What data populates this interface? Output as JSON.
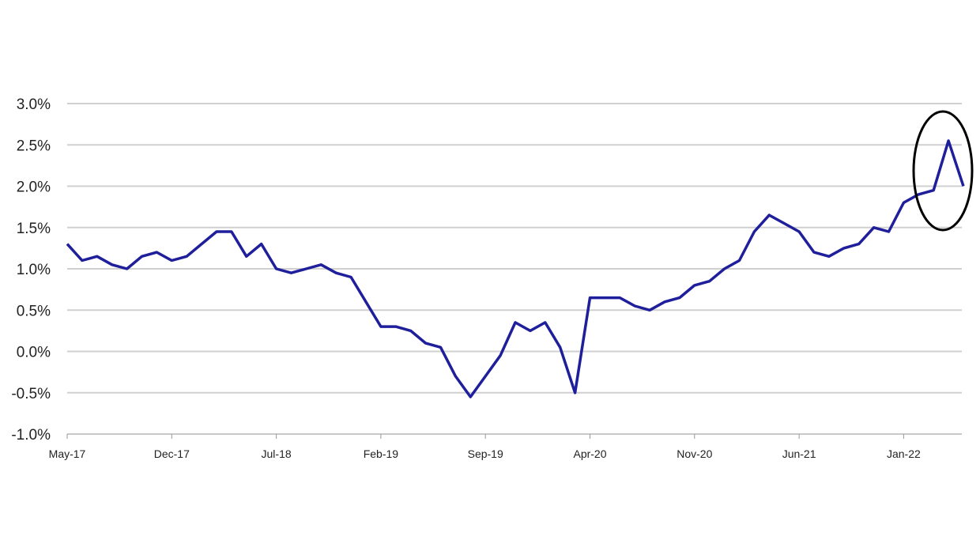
{
  "chart_data": {
    "type": "line",
    "categories": [
      "May-17",
      null,
      null,
      null,
      null,
      null,
      null,
      "Dec-17",
      null,
      null,
      null,
      null,
      null,
      null,
      "Jul-18",
      null,
      null,
      null,
      null,
      null,
      null,
      "Feb-19",
      null,
      null,
      null,
      null,
      null,
      null,
      "Sep-19",
      null,
      null,
      null,
      null,
      null,
      null,
      "Apr-20",
      null,
      null,
      null,
      null,
      null,
      null,
      "Nov-20",
      null,
      null,
      null,
      null,
      null,
      null,
      "Jun-21",
      null,
      null,
      null,
      null,
      null,
      null,
      "Jan-22",
      null,
      null,
      null,
      null
    ],
    "values": [
      1.3,
      1.1,
      1.15,
      1.05,
      1.0,
      1.15,
      1.2,
      1.1,
      1.15,
      1.3,
      1.45,
      1.45,
      1.15,
      1.3,
      1.0,
      0.95,
      1.0,
      1.05,
      0.95,
      0.9,
      0.6,
      0.3,
      0.3,
      0.25,
      0.1,
      0.05,
      -0.3,
      -0.55,
      -0.3,
      -0.05,
      0.35,
      0.25,
      0.35,
      0.05,
      -0.5,
      0.65,
      0.65,
      0.65,
      0.55,
      0.5,
      0.6,
      0.65,
      0.8,
      0.85,
      1.0,
      1.1,
      1.45,
      1.65,
      1.55,
      1.45,
      1.2,
      1.15,
      1.25,
      1.3,
      1.5,
      1.45,
      1.8,
      1.9,
      1.95,
      2.55,
      2.0
    ],
    "color": "#1f1f9c",
    "ylim": [
      -1,
      3
    ],
    "yticks": [
      {
        "value": -1,
        "label": "-1.0%"
      },
      {
        "value": -0.5,
        "label": "-0.5%"
      },
      {
        "value": 0,
        "label": "0.0%"
      },
      {
        "value": 0.5,
        "label": "0.5%"
      },
      {
        "value": 1,
        "label": "1.0%"
      },
      {
        "value": 1.5,
        "label": "1.5%"
      },
      {
        "value": 2,
        "label": "2.0%"
      },
      {
        "value": 2.5,
        "label": "2.5%"
      },
      {
        "value": 3,
        "label": "3.0%"
      }
    ],
    "grid": true
  }
}
